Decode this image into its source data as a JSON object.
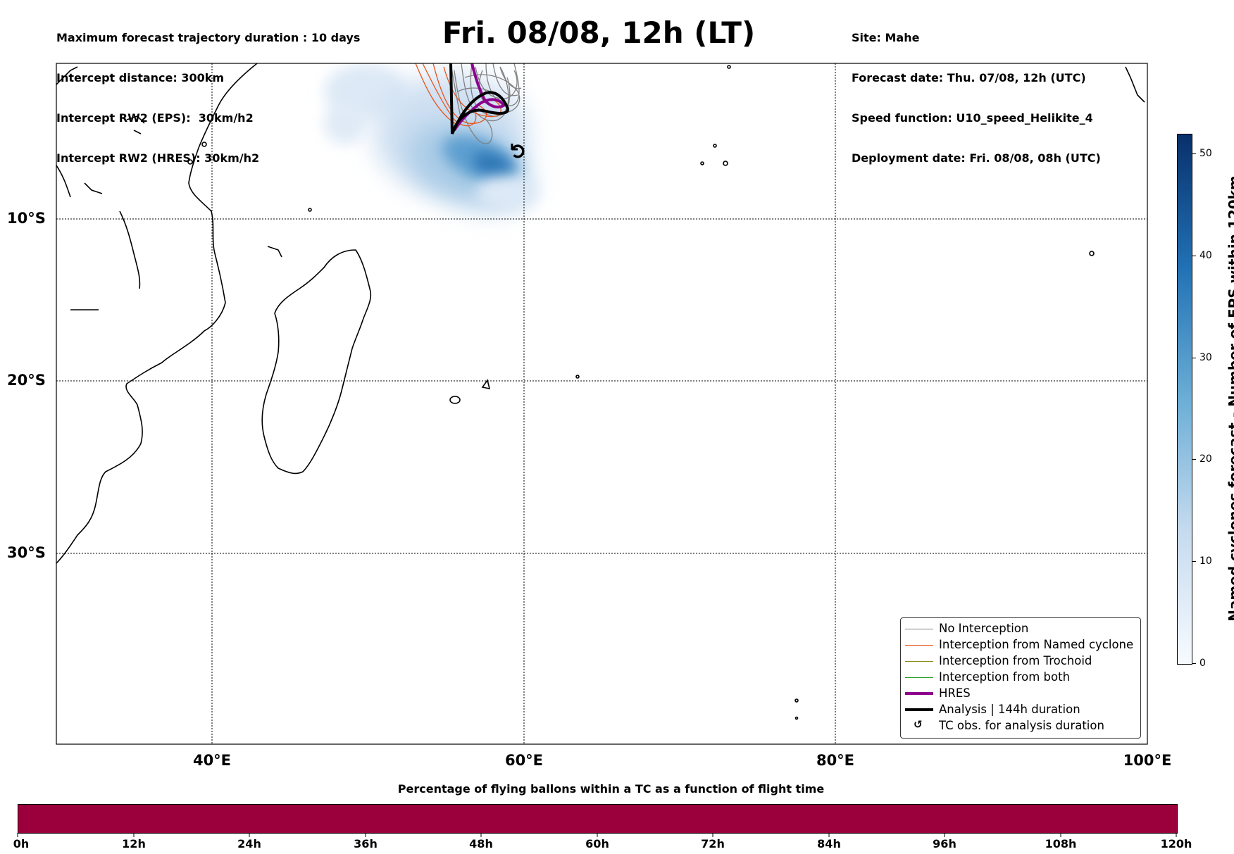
{
  "header": {
    "left_lines": [
      "Maximum forecast trajectory duration : 10 days",
      "Intercept distance: 300km",
      "Intercept RW2 (EPS):  30km/h2",
      "Intercept RW2 (HRES): 30km/h2"
    ],
    "title": "Fri. 08/08, 12h (LT)",
    "right_lines": [
      "Site: Mahe",
      "Forecast date: Thu. 07/08, 12h (UTC)",
      "Speed function: U10_speed_Helikite_4",
      "Deployment date: Fri. 08/08, 08h (UTC)"
    ]
  },
  "map": {
    "lat_labels": [
      "10°S",
      "20°S",
      "30°S"
    ],
    "lon_labels": [
      "40°E",
      "60°E",
      "80°E",
      "100°E"
    ],
    "tc_symbol": "↺",
    "colors": {
      "no_interception": "#808080",
      "named_cyclone": "#e8541a",
      "trochoid": "#8a8a1e",
      "both": "#1a9a1a",
      "hres": "#8b008b",
      "analysis": "#000000"
    }
  },
  "legend": {
    "items": [
      {
        "label": "No Interception",
        "color": "#808080"
      },
      {
        "label": "Interception from Named cyclone",
        "color": "#e8541a"
      },
      {
        "label": "Interception from Trochoid",
        "color": "#8a8a1e"
      },
      {
        "label": "Interception from both",
        "color": "#1a9a1a"
      },
      {
        "label": "HRES",
        "color": "#8b008b"
      },
      {
        "label": "Analysis | 144h duration",
        "color": "#000000"
      },
      {
        "label": "TC obs. for analysis duration",
        "symbol": "↺"
      }
    ]
  },
  "colorbar": {
    "title": "Named cyclones forecast - Number of EPS within 120km",
    "ticks": [
      "0",
      "10",
      "20",
      "30",
      "40",
      "50"
    ],
    "range": [
      0,
      52
    ],
    "colormap": "Blues"
  },
  "time_bar": {
    "title": "Percentage of flying ballons within a TC as a function of flight time",
    "labels": [
      "0h",
      "12h",
      "24h",
      "36h",
      "48h",
      "60h",
      "72h",
      "84h",
      "96h",
      "108h",
      "120h"
    ],
    "color": "#9b003c"
  }
}
